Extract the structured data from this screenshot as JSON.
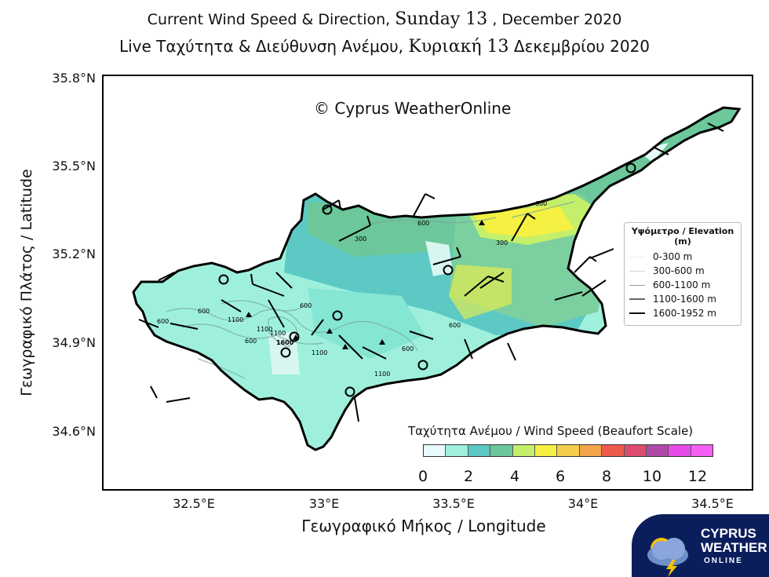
{
  "header": {
    "line1_prefix": "Current Wind Speed & Direction,",
    "line1_day": "Sunday 13",
    "line1_suffix": ", December 2020",
    "line2_prefix": "Live Ταχύτητα & Διεύθυνση Ανέμου,",
    "line2_day": "Κυριακή 13",
    "line2_suffix": "Δεκεμβρίου 2020"
  },
  "copyright": "© Cyprus WeatherOnline",
  "axes": {
    "ylabel": "Γεωγραφικό Πλάτος / Latitude",
    "xlabel": "Γεωγραφικό Μήκος / Longitude",
    "yticks": [
      "35.8°N",
      "35.5°N",
      "35.2°N",
      "34.9°N",
      "34.6°N"
    ],
    "xticks": [
      "32.5°E",
      "33°E",
      "33.5°E",
      "34°E",
      "34.5°E"
    ]
  },
  "elevation_legend": {
    "title": "Υψόμετρο / Elevation (m)",
    "items": [
      {
        "label": "0-300 m",
        "color": "#f4f4f4"
      },
      {
        "label": "300-600 m",
        "color": "#dddddd"
      },
      {
        "label": "600-1100 m",
        "color": "#aaaaaa"
      },
      {
        "label": "1100-1600 m",
        "color": "#777777"
      },
      {
        "label": "1600-1952 m",
        "color": "#111111"
      }
    ]
  },
  "colorbar": {
    "title": "Ταχύτητα Ανέμου / Wind Speed (Beaufort Scale)",
    "ticks": [
      "0",
      "2",
      "4",
      "6",
      "8",
      "10",
      "12"
    ],
    "colors": [
      "#e8fbfb",
      "#9ef0dd",
      "#5cc9c4",
      "#6cc79a",
      "#c4ef6a",
      "#f4f142",
      "#f5cf4a",
      "#f3a64a",
      "#ee5a4c",
      "#dc4d6e",
      "#b04aa8",
      "#e84ae8",
      "#f55ff5"
    ]
  },
  "contour_labels": [
    "600",
    "600",
    "1100",
    "1600",
    "1100",
    "1100",
    "600",
    "600",
    "1100",
    "1100",
    "600",
    "600",
    "600",
    "300",
    "300",
    "600"
  ],
  "logo": {
    "line1": "CYPRUS",
    "line2": "WEATHER",
    "line3": "ONLINE",
    "icon": "cloud-lightning-icon"
  }
}
